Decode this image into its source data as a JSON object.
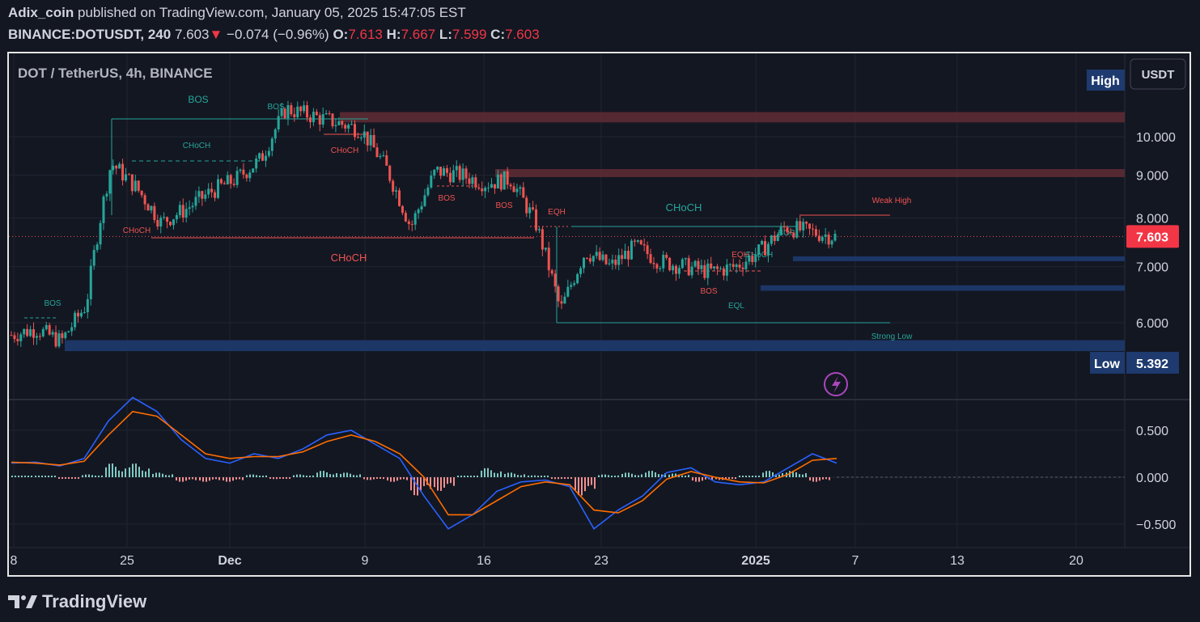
{
  "header": {
    "author": "Adix_coin",
    "published_text": "published on TradingView.com, January 05, 2025 15:47:05 EST",
    "symbol": "BINANCE:DOTUSDT, 240",
    "last": "7.603",
    "change": "−0.074 (−0.96%)",
    "open_label": "O:",
    "open": "7.613",
    "high_label": "H:",
    "high": "7.667",
    "low_label": "L:",
    "low": "7.599",
    "close_label": "C:",
    "close": "7.603"
  },
  "legend_title": "DOT / TetherUS, 4h, BINANCE",
  "currency_button": "USDT",
  "footer_brand": "TradingView",
  "colors": {
    "bg": "#131722",
    "up": "#26a69a",
    "down": "#ef5350",
    "grid": "#1f2430",
    "macd": "#2962ff",
    "signal": "#ff6d00",
    "demand": "#1e3a6e",
    "supply": "#5d2b33"
  },
  "chart_data": [
    {
      "type": "candlestick",
      "title": "DOT / TetherUS, 4h, BINANCE",
      "x_tick_labels": [
        "8",
        "25",
        "Dec",
        "9",
        "16",
        "23",
        "2025",
        "7",
        "13",
        "20"
      ],
      "y_tick_labels": [
        "6.000",
        "7.000",
        "8.000",
        "9.000",
        "10.000"
      ],
      "y_scale": "log",
      "ylim": [
        5.3,
        11.7
      ],
      "last_price": 7.603,
      "last_price_label": "7.603",
      "high_tag": "High",
      "low_tag": "Low",
      "low_value": "5.392",
      "series_close_approx": [
        [
          "Nov 18",
          5.8
        ],
        [
          "Nov 20",
          5.9
        ],
        [
          "Nov 22",
          5.7
        ],
        [
          "Nov 23",
          6.3
        ],
        [
          "Nov 24",
          9.3
        ],
        [
          "Nov 25",
          8.7
        ],
        [
          "Nov 26",
          7.9
        ],
        [
          "Nov 27",
          8.2
        ],
        [
          "Nov 29",
          8.6
        ],
        [
          "Dec 1",
          8.9
        ],
        [
          "Dec 2",
          9.4
        ],
        [
          "Dec 4",
          10.8
        ],
        [
          "Dec 5",
          10.6
        ],
        [
          "Dec 7",
          10.4
        ],
        [
          "Dec 8",
          10.2
        ],
        [
          "Dec 9",
          9.2
        ],
        [
          "Dec 10",
          7.8
        ],
        [
          "Dec 11",
          9.1
        ],
        [
          "Dec 13",
          9.0
        ],
        [
          "Dec 15",
          8.8
        ],
        [
          "Dec 17",
          8.9
        ],
        [
          "Dec 19",
          7.9
        ],
        [
          "Dec 20",
          6.2
        ],
        [
          "Dec 21",
          7.3
        ],
        [
          "Dec 23",
          7.0
        ],
        [
          "Dec 25",
          7.4
        ],
        [
          "Dec 27",
          7.1
        ],
        [
          "Dec 29",
          7.0
        ],
        [
          "Dec 31",
          6.9
        ],
        [
          "Jan 1",
          7.0
        ],
        [
          "Jan 2",
          7.3
        ],
        [
          "Jan 3",
          7.8
        ],
        [
          "Jan 4",
          7.7
        ],
        [
          "Jan 5",
          7.6
        ]
      ],
      "annotations": [
        {
          "label": "BOS",
          "color": "#26a69a"
        },
        {
          "label": "BOS",
          "color": "#26a69a"
        },
        {
          "label": "BOS",
          "color": "#26a69a"
        },
        {
          "label": "CHoCH",
          "color": "#26a69a"
        },
        {
          "label": "CHoCH",
          "color": "#ef5350"
        },
        {
          "label": "CHoCH",
          "color": "#ef5350"
        },
        {
          "label": "CHoCH",
          "color": "#ef5350"
        },
        {
          "label": "BOS",
          "color": "#ef5350"
        },
        {
          "label": "BOS",
          "color": "#ef5350"
        },
        {
          "label": "EQH",
          "color": "#ef5350"
        },
        {
          "label": "CHoCH",
          "color": "#26a69a"
        },
        {
          "label": "EQH",
          "color": "#ef5350"
        },
        {
          "label": "CHoCH",
          "color": "#26a69a"
        },
        {
          "label": "BOS",
          "color": "#26a69a"
        },
        {
          "label": "BOS",
          "color": "#ef5350"
        },
        {
          "label": "EQL",
          "color": "#26a69a"
        },
        {
          "label": "Weak High",
          "color": "#ef5350"
        },
        {
          "label": "Strong Low",
          "color": "#26a69a"
        }
      ],
      "zones": [
        {
          "kind": "supply",
          "from": 10.4,
          "to": 10.7
        },
        {
          "kind": "supply",
          "from": 8.95,
          "to": 9.15
        },
        {
          "kind": "demand",
          "from": 7.12,
          "to": 7.2
        },
        {
          "kind": "demand",
          "from": 6.55,
          "to": 6.65
        },
        {
          "kind": "demand",
          "from": 5.55,
          "to": 5.72
        }
      ]
    },
    {
      "type": "line",
      "title": "MACD",
      "y_tick_labels": [
        "0.500",
        "0.000",
        "−0.500"
      ],
      "ylim": [
        -0.62,
        0.82
      ],
      "series": [
        {
          "values": [
            0.15,
            0.16,
            0.12,
            0.2,
            0.6,
            0.85,
            0.7,
            0.4,
            0.2,
            0.15,
            0.25,
            0.2,
            0.3,
            0.45,
            0.5,
            0.35,
            0.2,
            -0.2,
            -0.55,
            -0.4,
            -0.15,
            -0.05,
            -0.03,
            -0.1,
            -0.55,
            -0.35,
            -0.2,
            0.05,
            0.1,
            -0.05,
            -0.08,
            -0.05,
            0.1,
            0.25,
            0.15
          ]
        },
        {
          "values": [
            0.16,
            0.15,
            0.13,
            0.17,
            0.45,
            0.7,
            0.65,
            0.45,
            0.25,
            0.2,
            0.22,
            0.22,
            0.27,
            0.38,
            0.45,
            0.38,
            0.25,
            0.0,
            -0.4,
            -0.4,
            -0.25,
            -0.1,
            -0.05,
            -0.08,
            -0.35,
            -0.38,
            -0.25,
            -0.02,
            0.06,
            0.0,
            -0.05,
            -0.06,
            0.03,
            0.18,
            0.2
          ]
        }
      ],
      "histogram_sign": [
        "+",
        "+",
        "-",
        "+",
        "+",
        "+",
        "+",
        "-",
        "-",
        "-",
        "+",
        "-",
        "+",
        "+",
        "+",
        "-",
        "-",
        "-",
        "-",
        "+",
        "+",
        "+",
        "+",
        "-",
        "-",
        "+",
        "+",
        "+",
        "+",
        "-",
        "-",
        "+",
        "+",
        "+",
        "-"
      ]
    }
  ]
}
